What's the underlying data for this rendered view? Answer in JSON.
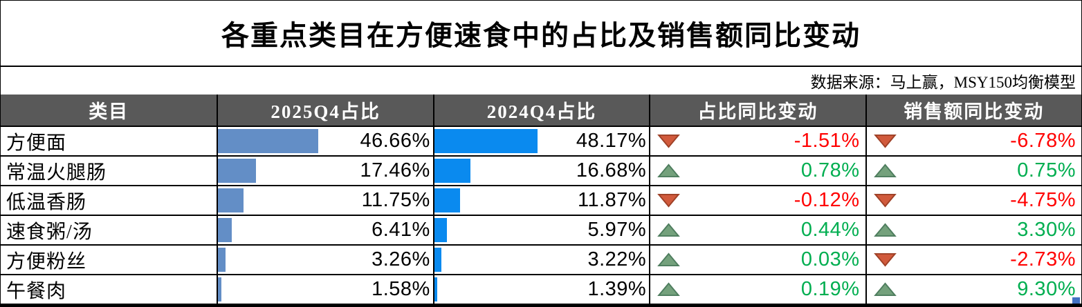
{
  "title": "各重点类目在方便速食中的占比及销售额同比变动",
  "source_note": "数据来源：马上赢，MSY150均衡模型",
  "table": {
    "headers": [
      "类目",
      "2025Q4占比",
      "2024Q4占比",
      "占比同比变动",
      "销售额同比变动"
    ],
    "rows": [
      {
        "category": "方便面",
        "share_2025": "46.66%",
        "share_2025_value": 46.66,
        "share_2024": "48.17%",
        "share_2024_value": 48.17,
        "share_change": "-1.51%",
        "share_change_dir": "down",
        "sales_change": "-6.78%",
        "sales_change_dir": "down"
      },
      {
        "category": "常温火腿肠",
        "share_2025": "17.46%",
        "share_2025_value": 17.46,
        "share_2024": "16.68%",
        "share_2024_value": 16.68,
        "share_change": "0.78%",
        "share_change_dir": "up",
        "sales_change": "0.75%",
        "sales_change_dir": "up"
      },
      {
        "category": "低温香肠",
        "share_2025": "11.75%",
        "share_2025_value": 11.75,
        "share_2024": "11.87%",
        "share_2024_value": 11.87,
        "share_change": "-0.12%",
        "share_change_dir": "down",
        "sales_change": "-4.75%",
        "sales_change_dir": "down"
      },
      {
        "category": "速食粥/汤",
        "share_2025": "6.41%",
        "share_2025_value": 6.41,
        "share_2024": "5.97%",
        "share_2024_value": 5.97,
        "share_change": "0.44%",
        "share_change_dir": "up",
        "sales_change": "3.30%",
        "sales_change_dir": "up"
      },
      {
        "category": "方便粉丝",
        "share_2025": "3.26%",
        "share_2025_value": 3.26,
        "share_2024": "3.22%",
        "share_2024_value": 3.22,
        "share_change": "0.03%",
        "share_change_dir": "up",
        "sales_change": "-2.73%",
        "sales_change_dir": "down"
      },
      {
        "category": "午餐肉",
        "share_2025": "1.58%",
        "share_2025_value": 1.58,
        "share_2024": "1.39%",
        "share_2024_value": 1.39,
        "share_change": "0.19%",
        "share_change_dir": "up",
        "sales_change": "9.30%",
        "sales_change_dir": "up"
      }
    ]
  },
  "icons": {
    "up": "up-triangle-icon",
    "down": "down-triangle-icon"
  },
  "colors": {
    "border": "#000000",
    "header_bg": "#595959",
    "header_text": "#FFFFFF",
    "bar_2025": "#638EC6",
    "bar_2024": "#0A8AEF",
    "positive_text": "#00AE50",
    "negative_text": "#FF0000",
    "up_triangle_fill": "#74A17C",
    "up_triangle_stroke": "#4E7D5E",
    "down_triangle_fill": "#D15A3C",
    "down_triangle_stroke": "#9E4127",
    "fill_handle": "#4472C4"
  },
  "chart_data": {
    "type": "table",
    "title": "各重点类目在方便速食中的占比及销售额同比变动",
    "source": "数据来源：马上赢，MSY150均衡模型",
    "columns": [
      "类目",
      "2025Q4占比",
      "2024Q4占比",
      "占比同比变动",
      "销售额同比变动"
    ],
    "unit": "%",
    "rows": [
      [
        "方便面",
        46.66,
        48.17,
        -1.51,
        -6.78
      ],
      [
        "常温火腿肠",
        17.46,
        16.68,
        0.78,
        0.75
      ],
      [
        "低温香肠",
        11.75,
        11.87,
        -0.12,
        -4.75
      ],
      [
        "速食粥/汤",
        6.41,
        5.97,
        0.44,
        3.3
      ],
      [
        "方便粉丝",
        3.26,
        3.22,
        0.03,
        -2.73
      ],
      [
        "午餐肉",
        1.58,
        1.39,
        0.19,
        9.3
      ]
    ],
    "bar_scale": {
      "min": 0,
      "max": 100,
      "note": "data bars in the two share columns span the cell width proportionally to the % value"
    }
  }
}
